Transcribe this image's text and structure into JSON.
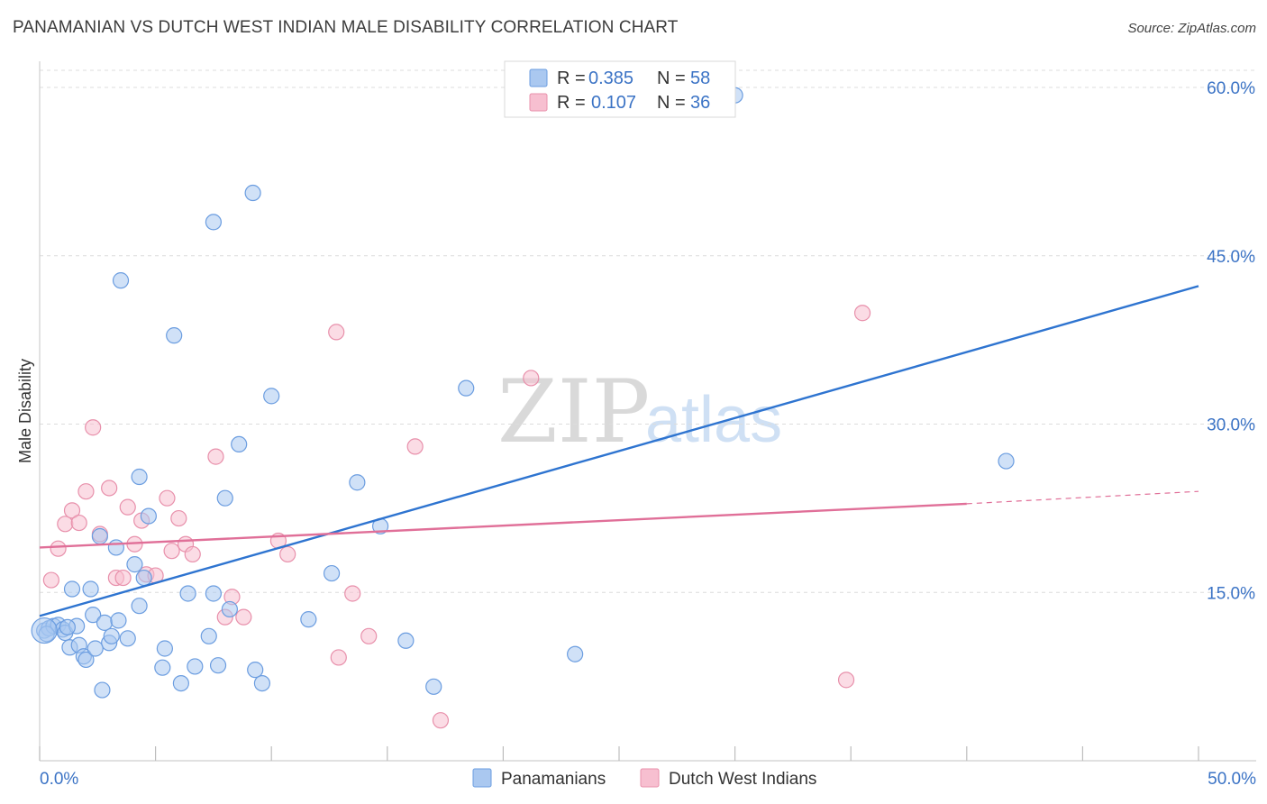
{
  "title": "PANAMANIAN VS DUTCH WEST INDIAN MALE DISABILITY CORRELATION CHART",
  "source": "Source: ZipAtlas.com",
  "watermark": {
    "zip": "ZIP",
    "atlas": "atlas"
  },
  "colors": {
    "blue_fill": "#aac8f0",
    "blue_stroke": "#6b9de0",
    "blue_line": "#2e74d0",
    "pink_fill": "#f7bfd0",
    "pink_stroke": "#e890ab",
    "pink_line": "#e06f98",
    "tick_text": "#3b73c5"
  },
  "legend": {
    "rows": [
      {
        "r_label": "R =",
        "r_value": "0.385",
        "n_label": "N =",
        "n_value": "58"
      },
      {
        "r_label": "R =",
        "r_value": "0.107",
        "n_label": "N =",
        "n_value": "36"
      }
    ]
  },
  "bottom_legend": [
    "Panamanians",
    "Dutch West Indians"
  ],
  "chart_data": {
    "type": "scatter",
    "title": "PANAMANIAN VS DUTCH WEST INDIAN MALE DISABILITY CORRELATION CHART",
    "xlabel": "",
    "ylabel": "Male Disability",
    "xlim": [
      0,
      50
    ],
    "ylim": [
      0,
      60
    ],
    "x_tick_labels": [
      "0.0%",
      "50.0%"
    ],
    "y_ticks": [
      15,
      30,
      45,
      60
    ],
    "y_tick_labels": [
      "15.0%",
      "30.0%",
      "45.0%",
      "60.0%"
    ],
    "series": [
      {
        "name": "Panamanians",
        "R": 0.385,
        "N": 58,
        "trend": {
          "x0": 0,
          "y0": 12.9,
          "x1": 50,
          "y1": 42.3
        },
        "points": [
          [
            0.2,
            11.6
          ],
          [
            0.4,
            11.8
          ],
          [
            0.6,
            12.0
          ],
          [
            0.8,
            12.1
          ],
          [
            1.0,
            11.7
          ],
          [
            1.1,
            11.4
          ],
          [
            1.3,
            10.1
          ],
          [
            1.4,
            15.3
          ],
          [
            1.6,
            12.0
          ],
          [
            1.7,
            10.3
          ],
          [
            1.9,
            9.3
          ],
          [
            2.0,
            9.0
          ],
          [
            2.2,
            15.3
          ],
          [
            2.3,
            13.0
          ],
          [
            2.6,
            20.0
          ],
          [
            2.8,
            12.3
          ],
          [
            2.7,
            6.3
          ],
          [
            3.0,
            10.5
          ],
          [
            3.1,
            11.1
          ],
          [
            3.3,
            19.0
          ],
          [
            3.4,
            12.5
          ],
          [
            3.5,
            42.8
          ],
          [
            3.8,
            10.9
          ],
          [
            4.1,
            17.5
          ],
          [
            4.3,
            13.8
          ],
          [
            4.3,
            25.3
          ],
          [
            4.5,
            16.3
          ],
          [
            4.7,
            21.8
          ],
          [
            5.3,
            8.3
          ],
          [
            5.4,
            10.0
          ],
          [
            5.8,
            37.9
          ],
          [
            6.1,
            6.9
          ],
          [
            6.4,
            14.9
          ],
          [
            6.7,
            8.4
          ],
          [
            7.3,
            11.1
          ],
          [
            7.5,
            14.9
          ],
          [
            7.5,
            48.0
          ],
          [
            7.7,
            8.5
          ],
          [
            8.0,
            23.4
          ],
          [
            8.2,
            13.5
          ],
          [
            8.6,
            28.2
          ],
          [
            9.2,
            50.6
          ],
          [
            9.3,
            8.1
          ],
          [
            9.6,
            6.9
          ],
          [
            10.0,
            32.5
          ],
          [
            11.6,
            12.6
          ],
          [
            12.6,
            16.7
          ],
          [
            13.7,
            24.8
          ],
          [
            14.7,
            20.9
          ],
          [
            15.8,
            10.7
          ],
          [
            17.0,
            6.6
          ],
          [
            18.4,
            33.2
          ],
          [
            23.1,
            9.5
          ],
          [
            30.0,
            59.3
          ],
          [
            41.7,
            26.7
          ],
          [
            0.3,
            11.3
          ],
          [
            1.2,
            11.9
          ],
          [
            2.4,
            10.0
          ]
        ]
      },
      {
        "name": "Dutch West Indians",
        "R": 0.107,
        "N": 36,
        "trend": {
          "x0": 0,
          "y0": 19.0,
          "x1": 40,
          "y1": 22.9,
          "dash_to_x": 50,
          "dash_to_y": 24.0
        },
        "points": [
          [
            0.5,
            16.1
          ],
          [
            0.8,
            18.9
          ],
          [
            1.1,
            21.1
          ],
          [
            1.4,
            22.3
          ],
          [
            1.7,
            21.2
          ],
          [
            2.0,
            24.0
          ],
          [
            2.3,
            29.7
          ],
          [
            2.6,
            20.2
          ],
          [
            3.0,
            24.3
          ],
          [
            3.3,
            16.3
          ],
          [
            3.6,
            16.3
          ],
          [
            3.8,
            22.6
          ],
          [
            4.1,
            19.3
          ],
          [
            4.4,
            21.4
          ],
          [
            4.6,
            16.6
          ],
          [
            5.0,
            16.5
          ],
          [
            5.5,
            23.4
          ],
          [
            5.7,
            18.7
          ],
          [
            6.0,
            21.6
          ],
          [
            6.3,
            19.3
          ],
          [
            6.6,
            18.4
          ],
          [
            7.6,
            27.1
          ],
          [
            8.0,
            12.8
          ],
          [
            8.3,
            14.6
          ],
          [
            8.8,
            12.8
          ],
          [
            10.3,
            19.6
          ],
          [
            10.7,
            18.4
          ],
          [
            12.8,
            38.2
          ],
          [
            12.9,
            9.2
          ],
          [
            13.5,
            14.9
          ],
          [
            14.2,
            11.1
          ],
          [
            16.2,
            28.0
          ],
          [
            17.3,
            3.6
          ],
          [
            21.2,
            34.1
          ],
          [
            34.8,
            7.2
          ],
          [
            35.5,
            39.9
          ]
        ]
      }
    ]
  }
}
